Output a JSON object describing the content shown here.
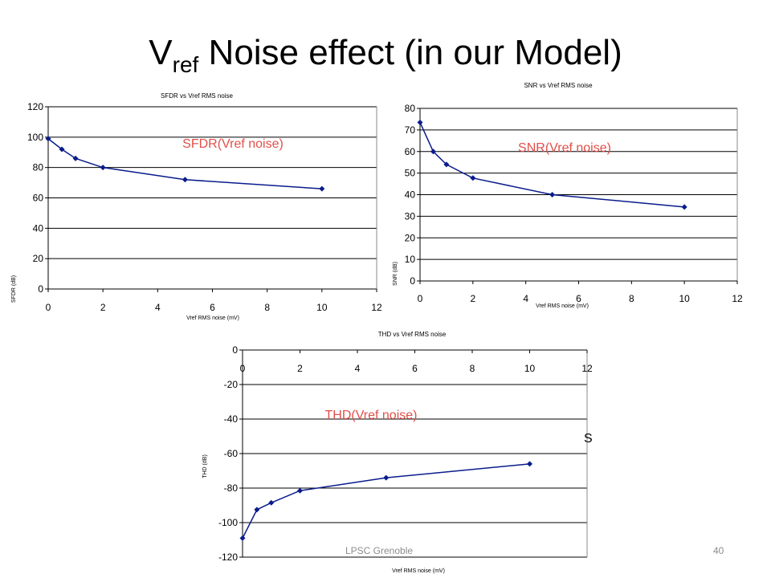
{
  "slide": {
    "title_main": "V",
    "title_sub": "ref",
    "title_rest": " Noise effect (in our Model)",
    "footer_org": "LPSC Grenoble",
    "page_number": "40",
    "stray_glyph": "S"
  },
  "colors": {
    "series": "#0a1c8c",
    "annotation": "#e0504a",
    "grid": "#000000"
  },
  "chart_data": [
    {
      "type": "line",
      "title": "SFDR vs Vref RMS noise",
      "xlabel": "Vref RMS noise (mV)",
      "ylabel": "SFDR (dB)",
      "annotation": "SFDR(Vref noise)",
      "xlim": [
        0,
        12
      ],
      "ylim": [
        0,
        120
      ],
      "xticks": [
        0,
        2,
        4,
        6,
        8,
        10,
        12
      ],
      "yticks": [
        0,
        20,
        40,
        60,
        80,
        100,
        120
      ],
      "grid": true,
      "x": [
        0,
        0.5,
        1,
        2,
        5,
        10
      ],
      "y": [
        99,
        92,
        86,
        80,
        72,
        66
      ]
    },
    {
      "type": "line",
      "title": "SNR vs Vref RMS noise",
      "xlabel": "Vref RMS noise (mV)",
      "ylabel": "SNR (dB)",
      "annotation": "SNR(Vref noise)",
      "xlim": [
        0,
        12
      ],
      "ylim": [
        0,
        80
      ],
      "xticks": [
        0,
        2,
        4,
        6,
        8,
        10,
        12
      ],
      "yticks": [
        0,
        10,
        20,
        30,
        40,
        50,
        60,
        70,
        80
      ],
      "grid": true,
      "x": [
        0,
        0.5,
        1,
        2,
        5,
        10
      ],
      "y": [
        73.5,
        60,
        54,
        47.7,
        40,
        34.3
      ]
    },
    {
      "type": "line",
      "title": "THD vs Vref RMS noise",
      "xlabel": "Vref RMS noise (mV)",
      "ylabel": "THD (dB)",
      "annotation": "THD(Vref noise)",
      "xlim": [
        0,
        12
      ],
      "ylim": [
        -120,
        0
      ],
      "xticks": [
        0,
        2,
        4,
        6,
        8,
        10,
        12
      ],
      "yticks": [
        0,
        -20,
        -40,
        -60,
        -80,
        -100,
        -120
      ],
      "grid": true,
      "x": [
        0,
        0.5,
        1,
        2,
        5,
        10
      ],
      "y": [
        -109,
        -92.5,
        -88.5,
        -81.5,
        -74,
        -66
      ]
    }
  ]
}
